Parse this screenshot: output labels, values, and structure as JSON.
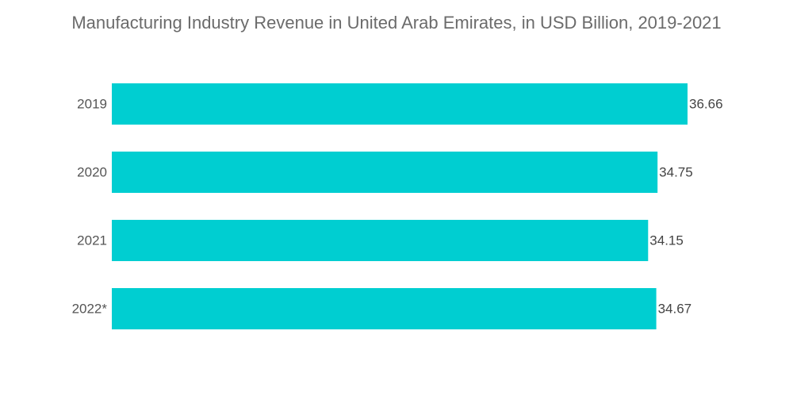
{
  "chart_data": {
    "type": "bar",
    "orientation": "horizontal",
    "title": "Manufacturing Industry Revenue in United Arab Emirates, in USD Billion, 2019-2021",
    "categories": [
      "2019",
      "2020",
      "2021",
      "2022*"
    ],
    "values": [
      36.66,
      34.75,
      34.15,
      34.67
    ],
    "value_labels": [
      "36.66",
      "34.75",
      "34.15",
      "34.67"
    ],
    "xlabel": "",
    "ylabel": "",
    "xlim": [
      0,
      36.66
    ],
    "grid": false,
    "legend": "none",
    "bar_color": "#00CED1"
  }
}
